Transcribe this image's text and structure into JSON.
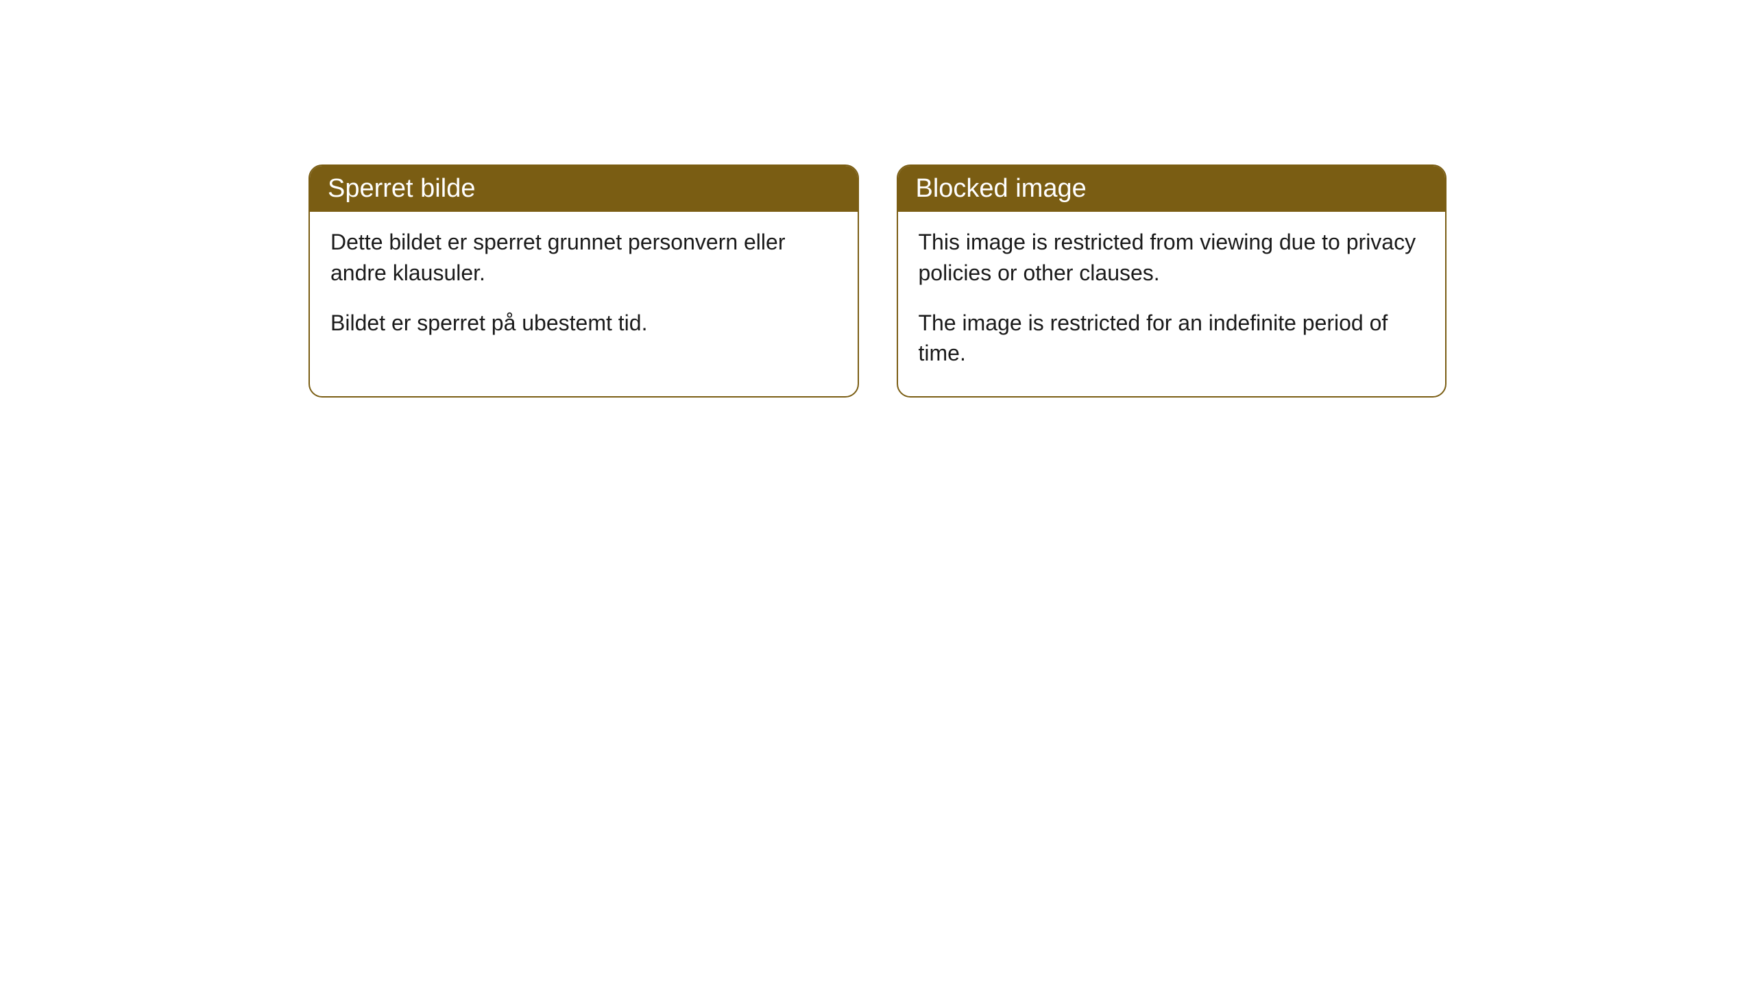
{
  "cards": [
    {
      "title": "Sperret bilde",
      "paragraph1": "Dette bildet er sperret grunnet personvern eller andre klausuler.",
      "paragraph2": "Bildet er sperret på ubestemt tid."
    },
    {
      "title": "Blocked image",
      "paragraph1": "This image is restricted from viewing due to privacy policies or other clauses.",
      "paragraph2": "The image is restricted for an indefinite period of time."
    }
  ],
  "styling": {
    "header_background": "#7a5d13",
    "header_text_color": "#ffffff",
    "border_color": "#7a5d13",
    "body_text_color": "#1a1a1a",
    "card_background": "#ffffff",
    "page_background": "#ffffff",
    "border_radius": 20,
    "header_fontsize": 38,
    "body_fontsize": 32
  }
}
